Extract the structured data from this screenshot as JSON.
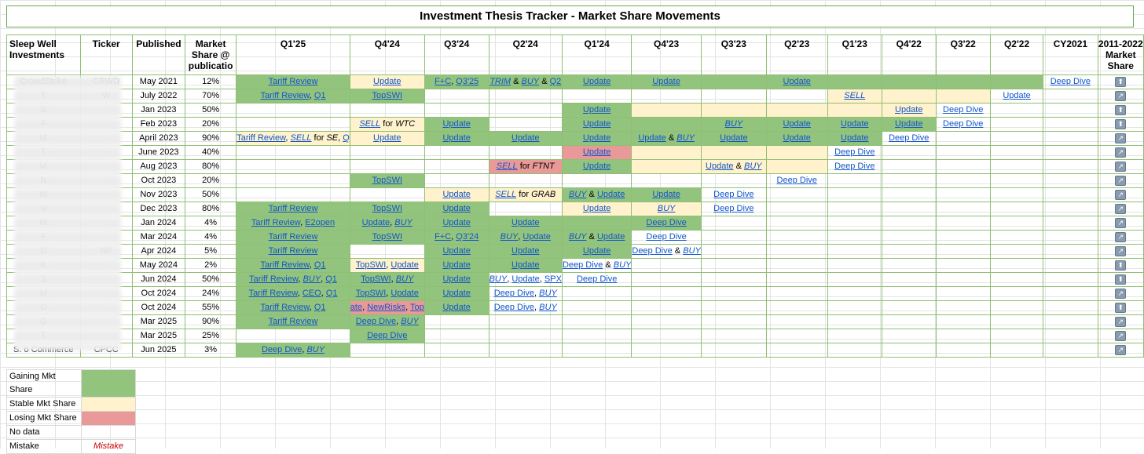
{
  "title": "Investment Thesis Tracker - Market Share Movements",
  "headers": [
    "Sleep Well Investments",
    "Ticker",
    "Published",
    "Market Share @ publicatio",
    "Q1'25",
    "Q4'24",
    "Q3'24",
    "Q2'24",
    "Q1'24",
    "Q4'23",
    "Q3'23",
    "Q2'23",
    "Q1'23",
    "Q4'22",
    "Q3'22",
    "Q2'22",
    "CY2021",
    "2011-2022 Market Share"
  ],
  "colors": {
    "gaining": "#93c47d",
    "stable": "#fff2cc",
    "losing": "#ea9999",
    "link": "#1155cc",
    "mistake": "#cc0000",
    "border": "#6aa84f"
  },
  "rows": [
    {
      "name": "CrowdStrike",
      "ticker": "CRWD",
      "published": "May 2021",
      "share": "12%",
      "trend": "up",
      "cells": [
        [
          "g",
          "Tariff Review"
        ],
        [
          "y",
          "Update"
        ],
        [
          "g",
          "F+C, Q3'25"
        ],
        [
          "g",
          "TRIM & BUY & Q2"
        ],
        [
          "g",
          "Update"
        ],
        [
          "g",
          "Update"
        ],
        [
          "g",
          ""
        ],
        [
          "g",
          "Update"
        ],
        [
          "g",
          ""
        ],
        [
          "g",
          ""
        ],
        [
          "g",
          ""
        ],
        [
          "g",
          ""
        ],
        [
          "",
          "Deep Dive"
        ]
      ]
    },
    {
      "name": "T",
      "ticker": "W",
      "published": "July 2022",
      "share": "70%",
      "trend": "side",
      "cells": [
        [
          "g",
          "Tariff Review, Q1"
        ],
        [
          "g",
          "TopSWI"
        ],
        [
          "",
          ""
        ],
        [
          "",
          ""
        ],
        [
          "",
          ""
        ],
        [
          "",
          ""
        ],
        [
          "",
          ""
        ],
        [
          "",
          ""
        ],
        [
          "y",
          "SELL"
        ],
        [
          "y",
          ""
        ],
        [
          "y",
          ""
        ],
        [
          "",
          "Update"
        ],
        [
          "",
          ""
        ]
      ]
    },
    {
      "name": "S",
      "ticker": "",
      "published": "Jan 2023",
      "share": "50%",
      "trend": "up",
      "cells": [
        [
          "",
          ""
        ],
        [
          "",
          ""
        ],
        [
          "",
          ""
        ],
        [
          "",
          ""
        ],
        [
          "g",
          "Update"
        ],
        [
          "y",
          ""
        ],
        [
          "y",
          ""
        ],
        [
          "y",
          ""
        ],
        [
          "y",
          ""
        ],
        [
          "y",
          "Update"
        ],
        [
          "",
          "Deep Dive"
        ],
        [
          "",
          ""
        ],
        [
          "",
          ""
        ]
      ]
    },
    {
      "name": "F",
      "ticker": "",
      "published": "Feb 2023",
      "share": "20%",
      "trend": "up",
      "cells": [
        [
          "",
          ""
        ],
        [
          "y",
          "SELL for WTC"
        ],
        [
          "g",
          "Update"
        ],
        [
          "",
          ""
        ],
        [
          "g",
          "Update"
        ],
        [
          "g",
          ""
        ],
        [
          "g",
          "BUY"
        ],
        [
          "g",
          "Update"
        ],
        [
          "g",
          "Update"
        ],
        [
          "g",
          "Update"
        ],
        [
          "",
          "Deep Dive"
        ],
        [
          "",
          ""
        ],
        [
          "",
          ""
        ]
      ]
    },
    {
      "name": "M",
      "ticker": "",
      "published": "April 2023",
      "share": "90%",
      "trend": "side",
      "cells": [
        [
          "y",
          "Tariff Review, SELL for SE, Q"
        ],
        [
          "y",
          "Update"
        ],
        [
          "g",
          "Update"
        ],
        [
          "g",
          "Update"
        ],
        [
          "g",
          "Update"
        ],
        [
          "g",
          "Update & BUY"
        ],
        [
          "g",
          "Update"
        ],
        [
          "g",
          "Update"
        ],
        [
          "g",
          "Update"
        ],
        [
          "",
          "Deep Dive"
        ],
        [
          "",
          ""
        ],
        [
          "",
          ""
        ],
        [
          "",
          ""
        ]
      ]
    },
    {
      "name": "T",
      "ticker": "",
      "published": "June 2023",
      "share": "40%",
      "trend": "side",
      "cells": [
        [
          "",
          ""
        ],
        [
          "",
          ""
        ],
        [
          "",
          ""
        ],
        [
          "",
          ""
        ],
        [
          "r",
          "Update"
        ],
        [
          "y",
          ""
        ],
        [
          "y",
          ""
        ],
        [
          "y",
          ""
        ],
        [
          "",
          "Deep Dive"
        ],
        [
          "",
          ""
        ],
        [
          "",
          ""
        ],
        [
          "",
          ""
        ],
        [
          "",
          ""
        ]
      ]
    },
    {
      "name": "M",
      "ticker": "",
      "published": "Aug 2023",
      "share": "80%",
      "trend": "side",
      "cells": [
        [
          "",
          ""
        ],
        [
          "",
          ""
        ],
        [
          "",
          ""
        ],
        [
          "r",
          "SELL for FTNT"
        ],
        [
          "g",
          "Update"
        ],
        [
          "y",
          ""
        ],
        [
          "y",
          "Update & BUY"
        ],
        [
          "y",
          ""
        ],
        [
          "",
          "Deep Dive"
        ],
        [
          "",
          ""
        ],
        [
          "",
          ""
        ],
        [
          "",
          ""
        ],
        [
          "",
          ""
        ]
      ]
    },
    {
      "name": "N",
      "ticker": "",
      "published": "Oct 2023",
      "share": "20%",
      "trend": "side",
      "cells": [
        [
          "",
          ""
        ],
        [
          "g",
          "TopSWI"
        ],
        [
          "",
          ""
        ],
        [
          "",
          ""
        ],
        [
          "",
          ""
        ],
        [
          "",
          ""
        ],
        [
          "",
          ""
        ],
        [
          "",
          "Deep Dive"
        ],
        [
          "",
          ""
        ],
        [
          "",
          ""
        ],
        [
          "",
          ""
        ],
        [
          "",
          ""
        ],
        [
          "",
          ""
        ]
      ]
    },
    {
      "name": "W",
      "ticker": "",
      "published": "Nov 2023",
      "share": "50%",
      "trend": "side",
      "cells": [
        [
          "",
          ""
        ],
        [
          "",
          ""
        ],
        [
          "y",
          "Update"
        ],
        [
          "y",
          "SELL for GRAB"
        ],
        [
          "g",
          "BUY & Update"
        ],
        [
          "g",
          "Update"
        ],
        [
          "",
          "Deep Dive"
        ],
        [
          "",
          ""
        ],
        [
          "",
          ""
        ],
        [
          "",
          ""
        ],
        [
          "",
          ""
        ],
        [
          "",
          ""
        ],
        [
          "",
          ""
        ]
      ]
    },
    {
      "name": "V",
      "ticker": "",
      "published": "Dec 2023",
      "share": "80%",
      "trend": "side",
      "cells": [
        [
          "g",
          "Tariff Review"
        ],
        [
          "g",
          "TopSWI"
        ],
        [
          "g",
          "Update"
        ],
        [
          "",
          ""
        ],
        [
          "y",
          "Update"
        ],
        [
          "y",
          "BUY"
        ],
        [
          "",
          "Deep Dive"
        ],
        [
          "",
          ""
        ],
        [
          "",
          ""
        ],
        [
          "",
          ""
        ],
        [
          "",
          ""
        ],
        [
          "",
          ""
        ],
        [
          "",
          ""
        ]
      ]
    },
    {
      "name": "W",
      "ticker": "",
      "published": "Jan 2024",
      "share": "4%",
      "trend": "side",
      "cells": [
        [
          "g",
          "Tariff Review, E2open"
        ],
        [
          "g",
          "Update, BUY"
        ],
        [
          "g",
          "Update"
        ],
        [
          "g",
          "Update"
        ],
        [
          "g",
          ""
        ],
        [
          "g",
          "Deep Dive"
        ],
        [
          "",
          ""
        ],
        [
          "",
          ""
        ],
        [
          "",
          ""
        ],
        [
          "",
          ""
        ],
        [
          "",
          ""
        ],
        [
          "",
          ""
        ],
        [
          "",
          ""
        ]
      ]
    },
    {
      "name": "F",
      "ticker": "",
      "published": "Mar 2024",
      "share": "4%",
      "trend": "side",
      "cells": [
        [
          "g",
          "Tariff Review"
        ],
        [
          "g",
          "TopSWI"
        ],
        [
          "g",
          "F+C, Q3'24"
        ],
        [
          "g",
          "BUY, Update"
        ],
        [
          "g",
          "BUY & Update"
        ],
        [
          "",
          "Deep Dive"
        ],
        [
          "",
          ""
        ],
        [
          "",
          ""
        ],
        [
          "",
          ""
        ],
        [
          "",
          ""
        ],
        [
          "",
          ""
        ],
        [
          "",
          ""
        ],
        [
          "",
          ""
        ]
      ]
    },
    {
      "name": "D",
      "ticker": "NP",
      "published": "Apr 2024",
      "share": "5%",
      "trend": "side",
      "cells": [
        [
          "g",
          "Tariff Review"
        ],
        [
          "",
          ""
        ],
        [
          "g",
          "Update"
        ],
        [
          "g",
          "Update"
        ],
        [
          "g",
          "Update"
        ],
        [
          "",
          "Deep Dive & BUY"
        ],
        [
          "",
          ""
        ],
        [
          "",
          ""
        ],
        [
          "",
          ""
        ],
        [
          "",
          ""
        ],
        [
          "",
          ""
        ],
        [
          "",
          ""
        ],
        [
          "",
          ""
        ]
      ]
    },
    {
      "name": "K",
      "ticker": "",
      "published": "May 2024",
      "share": "2%",
      "trend": "up",
      "cells": [
        [
          "g",
          "Tariff Review, Q1"
        ],
        [
          "y",
          "TopSWI, Update"
        ],
        [
          "g",
          "Update"
        ],
        [
          "g",
          "Update"
        ],
        [
          "",
          "Deep Dive & BUY"
        ],
        [
          "",
          ""
        ],
        [
          "",
          ""
        ],
        [
          "",
          ""
        ],
        [
          "",
          ""
        ],
        [
          "",
          ""
        ],
        [
          "",
          ""
        ],
        [
          "",
          ""
        ],
        [
          "",
          ""
        ]
      ]
    },
    {
      "name": "S",
      "ticker": "",
      "published": "Jun 2024",
      "share": "50%",
      "trend": "up",
      "cells": [
        [
          "g",
          "Tariff Review, BUY, Q1"
        ],
        [
          "g",
          "TopSWI, BUY"
        ],
        [
          "g",
          "Update"
        ],
        [
          "",
          "BUY, Update, SPX"
        ],
        [
          "",
          "Deep Dive"
        ],
        [
          "",
          ""
        ],
        [
          "",
          ""
        ],
        [
          "",
          ""
        ],
        [
          "",
          ""
        ],
        [
          "",
          ""
        ],
        [
          "",
          ""
        ],
        [
          "",
          ""
        ],
        [
          "",
          ""
        ]
      ]
    },
    {
      "name": "M",
      "ticker": "",
      "published": "Oct 2024",
      "share": "24%",
      "trend": "side",
      "cells": [
        [
          "g",
          "Tariff Review, CEO, Q1"
        ],
        [
          "g",
          "TopSWI, Update"
        ],
        [
          "g",
          "Update"
        ],
        [
          "",
          "Deep Dive, BUY"
        ],
        [
          "",
          ""
        ],
        [
          "",
          ""
        ],
        [
          "",
          ""
        ],
        [
          "",
          ""
        ],
        [
          "",
          ""
        ],
        [
          "",
          ""
        ],
        [
          "",
          ""
        ],
        [
          "",
          ""
        ],
        [
          "",
          ""
        ]
      ]
    },
    {
      "name": "G",
      "ticker": "",
      "published": "Oct 2024",
      "share": "55%",
      "trend": "up",
      "cells": [
        [
          "g",
          "Tariff Review, Q1"
        ],
        [
          "r",
          "ate, NewRisks, Top"
        ],
        [
          "g",
          "Update"
        ],
        [
          "",
          "Deep Dive, BUY"
        ],
        [
          "",
          ""
        ],
        [
          "",
          ""
        ],
        [
          "",
          ""
        ],
        [
          "",
          ""
        ],
        [
          "",
          ""
        ],
        [
          "",
          ""
        ],
        [
          "",
          ""
        ],
        [
          "",
          ""
        ],
        [
          "",
          ""
        ]
      ]
    },
    {
      "name": "G",
      "ticker": "",
      "published": "Mar 2025",
      "share": "90%",
      "trend": "side",
      "cells": [
        [
          "g",
          "Tariff Review"
        ],
        [
          "g",
          "Deep Dive, BUY"
        ],
        [
          "",
          ""
        ],
        [
          "",
          ""
        ],
        [
          "",
          ""
        ],
        [
          "",
          ""
        ],
        [
          "",
          ""
        ],
        [
          "",
          ""
        ],
        [
          "",
          ""
        ],
        [
          "",
          ""
        ],
        [
          "",
          ""
        ],
        [
          "",
          ""
        ],
        [
          "",
          ""
        ]
      ]
    },
    {
      "name": "T",
      "ticker": "",
      "published": "Mar 2025",
      "share": "25%",
      "trend": "side",
      "cells": [
        [
          "",
          ""
        ],
        [
          "g",
          "Deep Dive"
        ],
        [
          "",
          ""
        ],
        [
          "",
          ""
        ],
        [
          "",
          ""
        ],
        [
          "",
          ""
        ],
        [
          "",
          ""
        ],
        [
          "",
          ""
        ],
        [
          "",
          ""
        ],
        [
          "",
          ""
        ],
        [
          "",
          ""
        ],
        [
          "",
          ""
        ],
        [
          "",
          ""
        ]
      ]
    },
    {
      "name": "S. o Commerce",
      "ticker": "CPCC",
      "published": "Jun 2025",
      "share": "3%",
      "trend": "side",
      "cells": [
        [
          "g",
          "Deep Dive, BUY"
        ],
        [
          "",
          ""
        ],
        [
          "",
          ""
        ],
        [
          "",
          ""
        ],
        [
          "",
          ""
        ],
        [
          "",
          ""
        ],
        [
          "",
          ""
        ],
        [
          "",
          ""
        ],
        [
          "",
          ""
        ],
        [
          "",
          ""
        ],
        [
          "",
          ""
        ],
        [
          "",
          ""
        ],
        [
          "",
          ""
        ]
      ]
    }
  ],
  "legend": [
    {
      "label": "Gaining Mkt Share",
      "swatch": "g",
      "text": ""
    },
    {
      "label": "Stable Mkt Share",
      "swatch": "y",
      "text": ""
    },
    {
      "label": "Losing Mkt Share",
      "swatch": "r",
      "text": ""
    },
    {
      "label": "No data",
      "swatch": "",
      "text": ""
    },
    {
      "label": "Mistake",
      "swatch": "",
      "text": "Mistake"
    }
  ]
}
